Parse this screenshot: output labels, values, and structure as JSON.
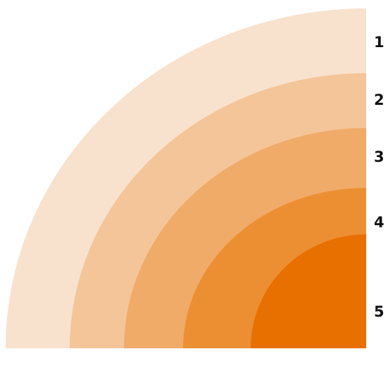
{
  "diagram": {
    "bands": [
      {
        "label": "1",
        "color": "#F8E2CD"
      },
      {
        "label": "2",
        "color": "#F4C598"
      },
      {
        "label": "3",
        "color": "#F0AB69"
      },
      {
        "label": "4",
        "color": "#EC8F33"
      },
      {
        "label": "5",
        "color": "#E87000"
      }
    ]
  }
}
